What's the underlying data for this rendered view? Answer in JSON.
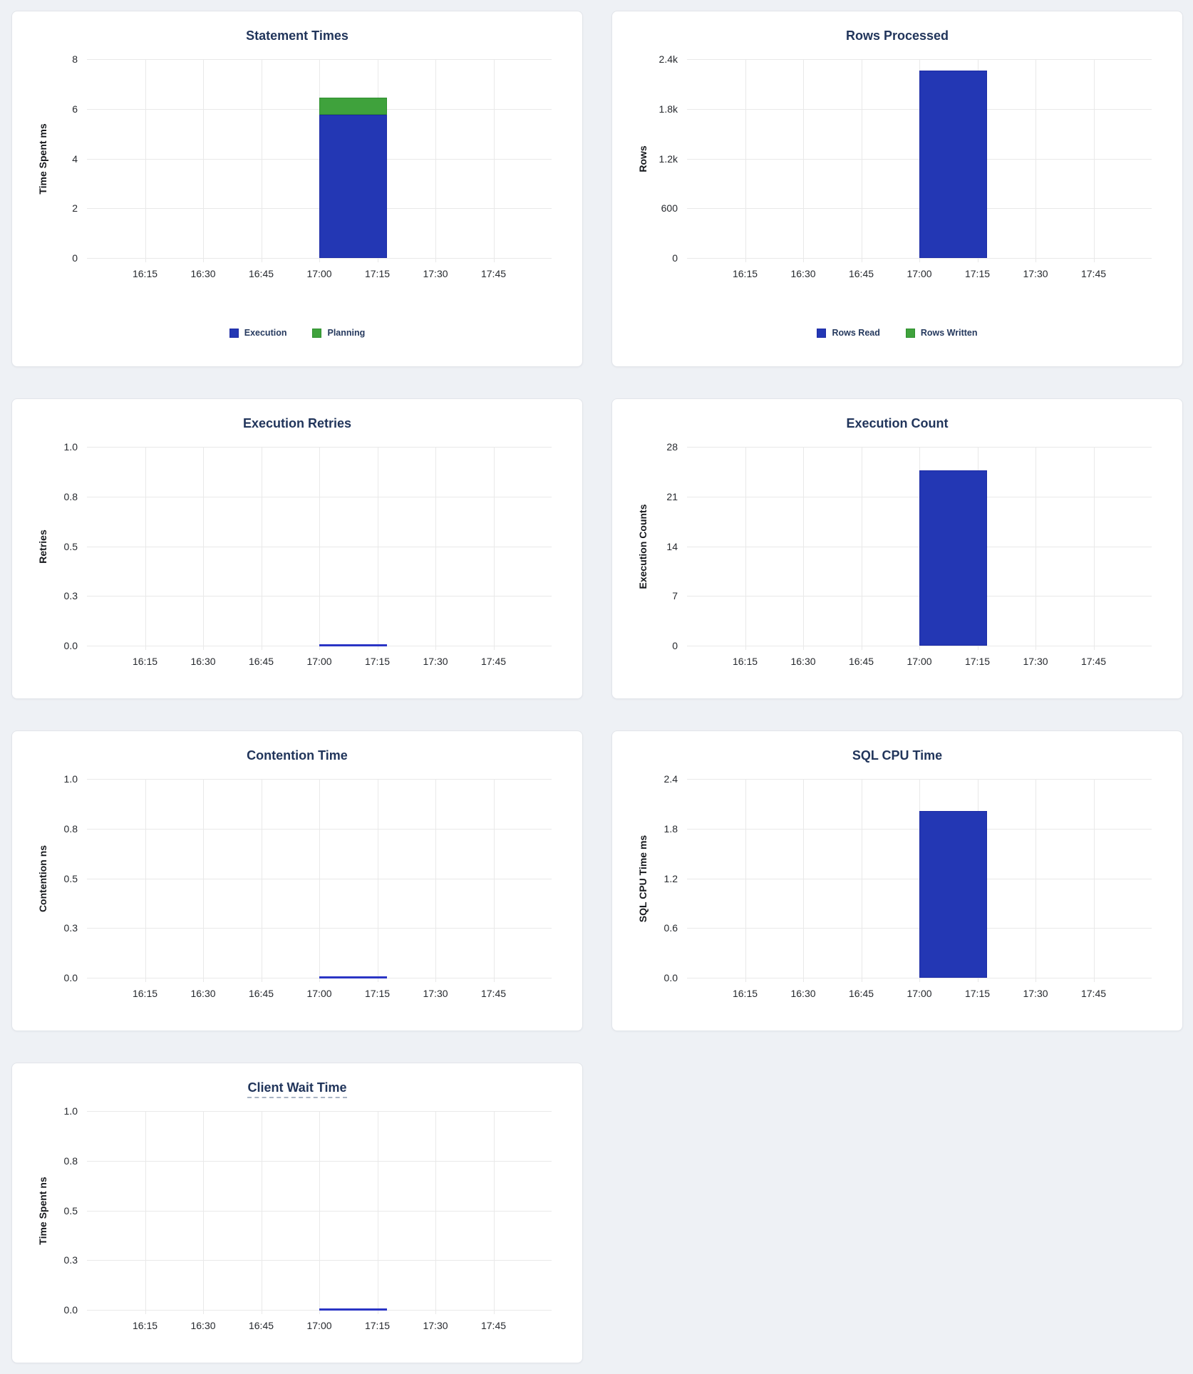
{
  "page": {
    "background": "#eef1f5"
  },
  "colors": {
    "title_text": "#21355b",
    "tick_text": "#26292e",
    "legend_text": "#25395e",
    "grid": "#e9e9e9",
    "bar_blue": "#2337b4",
    "bar_blue_border": "#1d2ba5",
    "bar_green": "#3fa23c",
    "bar_green_border": "#2e8f2e",
    "line_blue": "#2a35c5"
  },
  "chart_data": [
    {
      "type": "bar",
      "title": "Statement Times",
      "title_underlined": false,
      "ylabel": "Time Spent ms",
      "ylim": [
        0,
        8
      ],
      "y_tick_labels": [
        "0",
        "2",
        "4",
        "6",
        "8"
      ],
      "x_range": [
        "16:00",
        "18:00"
      ],
      "x_tick_labels": [
        "16:15",
        "16:30",
        "16:45",
        "17:00",
        "17:15",
        "17:30",
        "17:45"
      ],
      "bar_bucket_minutes": 15,
      "stacked": true,
      "grid": true,
      "show_legend": true,
      "legend_position": "bottom",
      "series": [
        {
          "name": "Execution",
          "type": "bar",
          "color": "#2337b4",
          "border": "#1d2ba5",
          "data": [
            {
              "x": "17:00",
              "y": 5.75
            }
          ]
        },
        {
          "name": "Planning",
          "type": "bar",
          "color": "#3fa23c",
          "border": "#2e8f2e",
          "data": [
            {
              "x": "17:00",
              "y": 0.7
            }
          ]
        }
      ]
    },
    {
      "type": "bar",
      "title": "Rows Processed",
      "title_underlined": false,
      "ylabel": "Rows",
      "ylim": [
        0,
        2400
      ],
      "y_tick_labels": [
        "0",
        "600",
        "1.2k",
        "1.8k",
        "2.4k"
      ],
      "x_range": [
        "16:00",
        "18:00"
      ],
      "x_tick_labels": [
        "16:15",
        "16:30",
        "16:45",
        "17:00",
        "17:15",
        "17:30",
        "17:45"
      ],
      "bar_bucket_minutes": 15,
      "stacked": true,
      "grid": true,
      "show_legend": true,
      "legend_position": "bottom",
      "series": [
        {
          "name": "Rows Read",
          "type": "bar",
          "color": "#2337b4",
          "border": "#1d2ba5",
          "data": [
            {
              "x": "17:00",
              "y": 2260
            }
          ]
        },
        {
          "name": "Rows Written",
          "type": "bar",
          "color": "#3fa23c",
          "border": "#2e8f2e",
          "data": [
            {
              "x": "17:00",
              "y": 0
            }
          ]
        }
      ]
    },
    {
      "type": "line",
      "title": "Execution Retries",
      "title_underlined": false,
      "ylabel": "Retries",
      "ylim": [
        0,
        1
      ],
      "y_tick_labels": [
        "0.0",
        "0.3",
        "0.5",
        "0.8",
        "1.0"
      ],
      "x_range": [
        "16:00",
        "18:00"
      ],
      "x_tick_labels": [
        "16:15",
        "16:30",
        "16:45",
        "17:00",
        "17:15",
        "17:30",
        "17:45"
      ],
      "grid": true,
      "show_legend": false,
      "series": [
        {
          "name": "Retries",
          "type": "line",
          "color": "#2a35c5",
          "data": [
            {
              "x": "17:00",
              "y": 0
            },
            {
              "x": "17:15",
              "y": 0
            }
          ]
        }
      ]
    },
    {
      "type": "bar",
      "title": "Execution Count",
      "title_underlined": false,
      "ylabel": "Execution Counts",
      "ylim": [
        0,
        28
      ],
      "y_tick_labels": [
        "0",
        "7",
        "14",
        "21",
        "28"
      ],
      "x_range": [
        "16:00",
        "18:00"
      ],
      "x_tick_labels": [
        "16:15",
        "16:30",
        "16:45",
        "17:00",
        "17:15",
        "17:30",
        "17:45"
      ],
      "bar_bucket_minutes": 15,
      "stacked": false,
      "grid": true,
      "show_legend": false,
      "series": [
        {
          "name": "Execution Count",
          "type": "bar",
          "color": "#2337b4",
          "border": "#1d2ba5",
          "data": [
            {
              "x": "17:00",
              "y": 24.7
            }
          ]
        }
      ]
    },
    {
      "type": "line",
      "title": "Contention Time",
      "title_underlined": false,
      "ylabel": "Contention ns",
      "ylim": [
        0,
        1
      ],
      "y_tick_labels": [
        "0.0",
        "0.3",
        "0.5",
        "0.8",
        "1.0"
      ],
      "x_range": [
        "16:00",
        "18:00"
      ],
      "x_tick_labels": [
        "16:15",
        "16:30",
        "16:45",
        "17:00",
        "17:15",
        "17:30",
        "17:45"
      ],
      "grid": true,
      "show_legend": false,
      "series": [
        {
          "name": "Contention",
          "type": "line",
          "color": "#2a35c5",
          "data": [
            {
              "x": "17:00",
              "y": 0
            },
            {
              "x": "17:15",
              "y": 0
            }
          ]
        }
      ]
    },
    {
      "type": "bar",
      "title": "SQL CPU Time",
      "title_underlined": false,
      "ylabel": "SQL CPU Time ms",
      "ylim": [
        0,
        2.4
      ],
      "y_tick_labels": [
        "0.0",
        "0.6",
        "1.2",
        "1.8",
        "2.4"
      ],
      "x_range": [
        "16:00",
        "18:00"
      ],
      "x_tick_labels": [
        "16:15",
        "16:30",
        "16:45",
        "17:00",
        "17:15",
        "17:30",
        "17:45"
      ],
      "bar_bucket_minutes": 15,
      "stacked": false,
      "grid": true,
      "show_legend": false,
      "series": [
        {
          "name": "SQL CPU Time",
          "type": "bar",
          "color": "#2337b4",
          "border": "#1d2ba5",
          "data": [
            {
              "x": "17:00",
              "y": 2.01
            }
          ]
        }
      ]
    },
    {
      "type": "line",
      "title": "Client Wait Time",
      "title_underlined": true,
      "ylabel": "Time Spent ns",
      "ylim": [
        0,
        1
      ],
      "y_tick_labels": [
        "0.0",
        "0.3",
        "0.5",
        "0.8",
        "1.0"
      ],
      "x_range": [
        "16:00",
        "18:00"
      ],
      "x_tick_labels": [
        "16:15",
        "16:30",
        "16:45",
        "17:00",
        "17:15",
        "17:30",
        "17:45"
      ],
      "grid": true,
      "show_legend": false,
      "series": [
        {
          "name": "Client Wait",
          "type": "line",
          "color": "#2a35c5",
          "data": [
            {
              "x": "17:00",
              "y": 0
            },
            {
              "x": "17:15",
              "y": 0
            }
          ]
        }
      ]
    }
  ]
}
